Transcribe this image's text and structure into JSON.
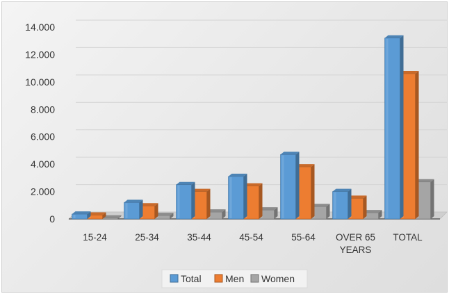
{
  "chart_data": {
    "type": "bar",
    "categories": [
      "15-24",
      "25-34",
      "35-44",
      "45-54",
      "55-64",
      "OVER 65 YEARS",
      "TOTAL"
    ],
    "category_lines": [
      [
        "15-24"
      ],
      [
        "25-34"
      ],
      [
        "35-44"
      ],
      [
        "45-54"
      ],
      [
        "55-64"
      ],
      [
        "OVER 65",
        "YEARS"
      ],
      [
        "TOTAL"
      ]
    ],
    "series": [
      {
        "name": "Total",
        "color": "#5b9bd5",
        "values": [
          350,
          1200,
          2500,
          3100,
          4700,
          2000,
          13200
        ]
      },
      {
        "name": "Men",
        "color": "#ed7d31",
        "values": [
          280,
          950,
          2000,
          2400,
          3800,
          1500,
          10600
        ]
      },
      {
        "name": "Women",
        "color": "#a5a5a5",
        "values": [
          70,
          250,
          500,
          650,
          900,
          450,
          2700
        ]
      }
    ],
    "y_ticks": [
      "0",
      "2.000",
      "4.000",
      "6.000",
      "8.000",
      "10.000",
      "12.000",
      "14.000"
    ],
    "ylim": [
      0,
      14000
    ],
    "grid": true,
    "legend_position": "bottom",
    "title": "",
    "xlabel": "",
    "ylabel": ""
  }
}
